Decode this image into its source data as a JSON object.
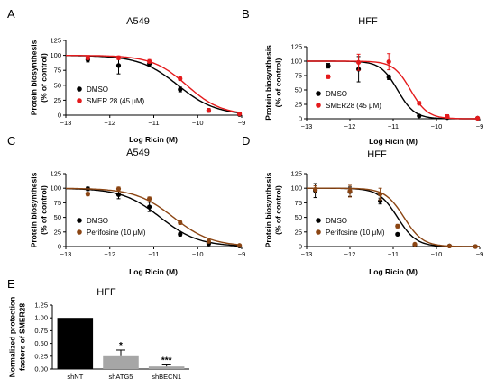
{
  "chart_data": [
    {
      "panel": "A",
      "type": "line",
      "title": "A549",
      "xlabel": "Log Ricin (M)",
      "ylabel": [
        "Protein biosynthesis",
        "(% of control)"
      ],
      "xlim": [
        -13,
        -9
      ],
      "ylim": [
        0,
        125
      ],
      "xticks": [
        "-13",
        "-12",
        "-11",
        "-10",
        "-9"
      ],
      "yticks": [
        "0",
        "25",
        "50",
        "75",
        "100",
        "125"
      ],
      "legend_position": "bottom-left",
      "series": [
        {
          "name": "DMSO",
          "color": "#000000",
          "marker": "circle",
          "x": [
            -12.5,
            -11.8,
            -11.1,
            -10.4,
            -9.75,
            -9.05
          ],
          "y": [
            93,
            83,
            86,
            43,
            8,
            1
          ],
          "err": [
            4,
            14,
            4,
            4,
            3,
            1
          ],
          "fit": {
            "top": 100,
            "bottom": 0,
            "logec50": -10.45,
            "hill": 1.0
          }
        },
        {
          "name": "SMER 28 (45 μM)",
          "color": "#e41a1c",
          "marker": "circle",
          "x": [
            -12.5,
            -11.8,
            -11.1,
            -10.4,
            -9.75,
            -9.05
          ],
          "y": [
            96,
            96,
            90,
            61,
            8,
            2
          ],
          "err": [
            3,
            3,
            3,
            3,
            3,
            1
          ],
          "fit": {
            "top": 100,
            "bottom": 0,
            "logec50": -10.25,
            "hill": 1.1
          }
        }
      ]
    },
    {
      "panel": "B",
      "type": "line",
      "title": "HFF",
      "xlabel": "Log Ricin (M)",
      "ylabel": [
        "Protein biosynthesis",
        "(% of control)"
      ],
      "xlim": [
        -13,
        -9
      ],
      "ylim": [
        0,
        125
      ],
      "xticks": [
        "-13",
        "-12",
        "-11",
        "-10",
        "-9"
      ],
      "yticks": [
        "0",
        "25",
        "50",
        "75",
        "100",
        "125"
      ],
      "legend_position": "bottom-left",
      "series": [
        {
          "name": "DMSO",
          "color": "#000000",
          "marker": "circle",
          "x": [
            -12.5,
            -11.8,
            -11.1,
            -10.4,
            -9.75,
            -9.05
          ],
          "y": [
            92,
            86,
            72,
            5,
            2,
            1
          ],
          "err": [
            4,
            22,
            4,
            2,
            2,
            1
          ],
          "fit": {
            "top": 100,
            "bottom": 0,
            "logec50": -10.9,
            "hill": 2.2
          }
        },
        {
          "name": "SMER28 (45 μM)",
          "color": "#e41a1c",
          "marker": "circle",
          "x": [
            -12.5,
            -11.8,
            -11.1,
            -10.4,
            -9.75,
            -9.05
          ],
          "y": [
            73,
            98,
            99,
            27,
            4,
            1
          ],
          "err": [
            3,
            14,
            14,
            3,
            3,
            1
          ],
          "fit": {
            "top": 100,
            "bottom": 0,
            "logec50": -10.6,
            "hill": 2.2
          }
        }
      ]
    },
    {
      "panel": "C",
      "type": "line",
      "title": "A549",
      "xlabel": "Log Ricin (M)",
      "ylabel": [
        "Protein biosynthesis",
        "(% of control)"
      ],
      "xlim": [
        -13,
        -9
      ],
      "ylim": [
        0,
        125
      ],
      "xticks": [
        "-13",
        "-12",
        "-11",
        "-10",
        "-9"
      ],
      "yticks": [
        "0",
        "25",
        "50",
        "75",
        "100",
        "125"
      ],
      "legend_position": "bottom-left",
      "series": [
        {
          "name": "DMSO",
          "color": "#000000",
          "marker": "circle",
          "x": [
            -12.5,
            -11.8,
            -11.1,
            -10.4,
            -9.75,
            -9.05
          ],
          "y": [
            99,
            89,
            68,
            21,
            5,
            1
          ],
          "err": [
            3,
            7,
            8,
            3,
            3,
            1
          ],
          "fit": {
            "top": 100,
            "bottom": 0,
            "logec50": -10.85,
            "hill": 1.0
          }
        },
        {
          "name": "Perifosine (10 μM)",
          "color": "#8b4513",
          "marker": "circle",
          "x": [
            -12.5,
            -11.8,
            -11.1,
            -10.4,
            -9.75,
            -9.05
          ],
          "y": [
            90,
            99,
            82,
            41,
            9,
            2
          ],
          "err": [
            3,
            3,
            3,
            3,
            3,
            1
          ],
          "fit": {
            "top": 100,
            "bottom": 0,
            "logec50": -10.55,
            "hill": 1.0
          }
        }
      ]
    },
    {
      "panel": "D",
      "type": "line",
      "title": "HFF",
      "xlabel": "Log Ricin (M)",
      "ylabel": [
        "Protein biosynthesis",
        "(% of control)"
      ],
      "xlim": [
        -13,
        -9
      ],
      "ylim": [
        0,
        125
      ],
      "xticks": [
        "-13",
        "-12",
        "-11",
        "-10",
        "-9"
      ],
      "yticks": [
        "0",
        "25",
        "50",
        "75",
        "100",
        "125"
      ],
      "legend_position": "bottom-left",
      "series": [
        {
          "name": "DMSO",
          "color": "#000000",
          "marker": "circle",
          "x": [
            -12.8,
            -12.0,
            -11.3,
            -10.9,
            -10.5,
            -9.7,
            -9.1
          ],
          "y": [
            96,
            94,
            78,
            21,
            3,
            1,
            0
          ],
          "err": [
            12,
            8,
            5,
            2,
            2,
            1,
            1
          ],
          "fit": {
            "top": 100,
            "bottom": 0,
            "logec50": -10.9,
            "hill": 2.0
          }
        },
        {
          "name": "Perifosine (10 μM)",
          "color": "#8b4513",
          "marker": "circle",
          "x": [
            -12.8,
            -12.0,
            -11.3,
            -10.9,
            -10.5,
            -9.7,
            -9.1
          ],
          "y": [
            98,
            95,
            90,
            35,
            4,
            1,
            0
          ],
          "err": [
            6,
            10,
            10,
            3,
            2,
            1,
            1
          ],
          "fit": {
            "top": 100,
            "bottom": 0,
            "logec50": -10.75,
            "hill": 2.0
          }
        }
      ]
    },
    {
      "panel": "E",
      "type": "bar",
      "title": "HFF",
      "ylabel": [
        "Normalized protection",
        "factors of SMER28"
      ],
      "categories": [
        "shNT",
        "shATG5",
        "shBECN1"
      ],
      "values": [
        1.0,
        0.25,
        0.05
      ],
      "errors": [
        0,
        0.12,
        0.03
      ],
      "colors": [
        "#000000",
        "#a6a6a6",
        "#a6a6a6"
      ],
      "significance": [
        "",
        "*",
        "***"
      ],
      "ylim": [
        0,
        1.25
      ],
      "yticks": [
        "0.00",
        "0.25",
        "0.50",
        "0.75",
        "1.00",
        "1.25"
      ]
    }
  ]
}
